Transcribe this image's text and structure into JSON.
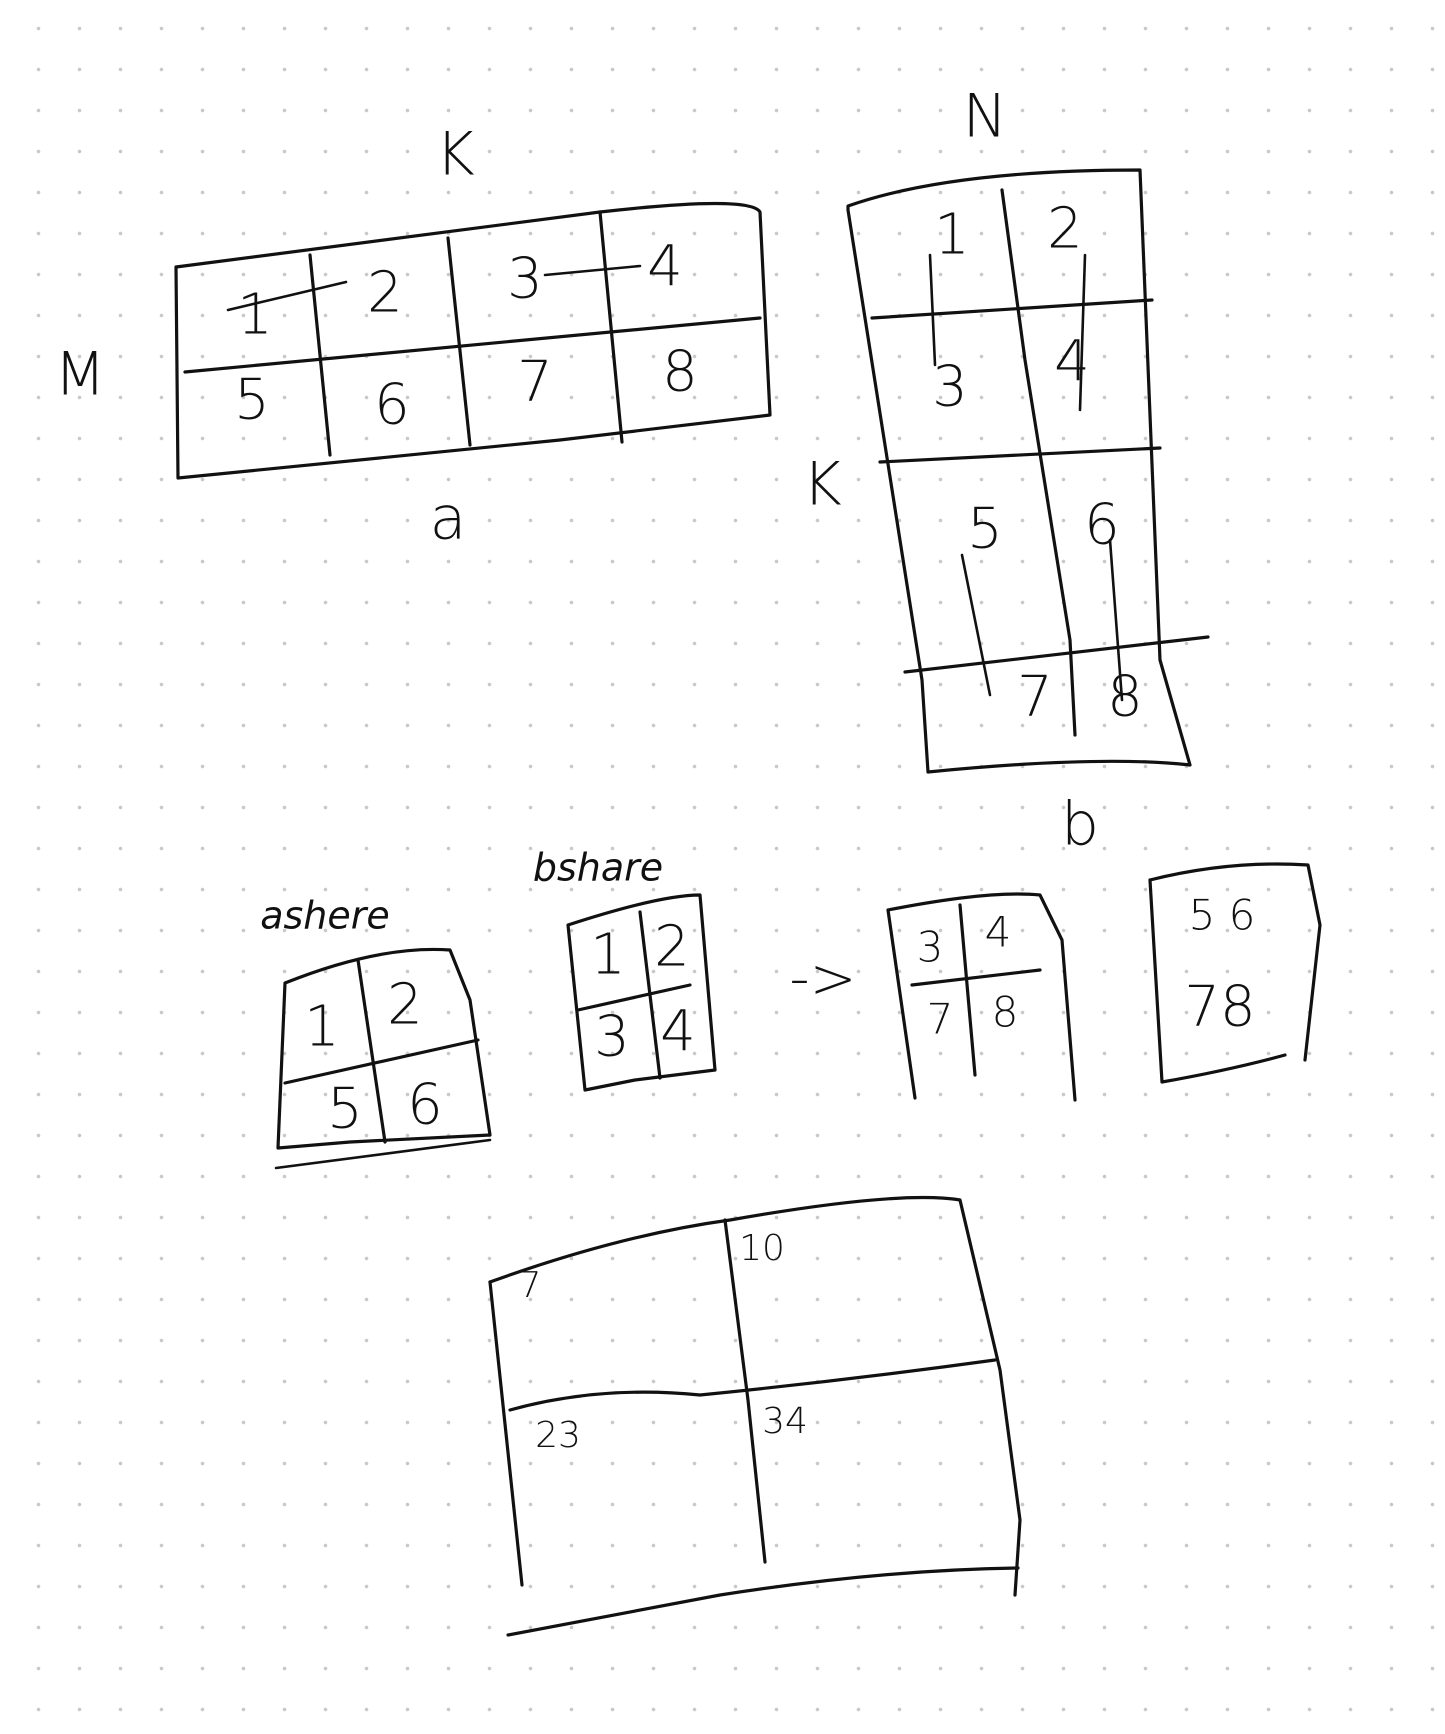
{
  "matrix_a": {
    "name": "a",
    "row_dim": "M",
    "col_dim": "K",
    "rows": [
      [
        "1",
        "2",
        "3",
        "4"
      ],
      [
        "5",
        "6",
        "7",
        "8"
      ]
    ]
  },
  "matrix_b": {
    "name": "b",
    "row_dim": "K",
    "col_dim": "N",
    "rows": [
      [
        "1",
        "2"
      ],
      [
        "3",
        "4"
      ],
      [
        "5",
        "6"
      ],
      [
        "7",
        "8"
      ]
    ]
  },
  "a_shared": {
    "label": "ashere",
    "rows": [
      [
        "1",
        "2"
      ],
      [
        "5",
        "6"
      ]
    ]
  },
  "b_shared": {
    "label": "bshare",
    "rows": [
      [
        "1",
        "2"
      ],
      [
        "3",
        "4"
      ]
    ]
  },
  "arrow": "->",
  "b_next_1": {
    "rows": [
      [
        "3",
        "4"
      ],
      [
        "7",
        "8"
      ]
    ]
  },
  "b_next_2": {
    "rows": [
      "5 6",
      "78"
    ]
  },
  "result": {
    "cells": [
      [
        "7",
        "10"
      ],
      [
        "23",
        "34"
      ]
    ]
  }
}
